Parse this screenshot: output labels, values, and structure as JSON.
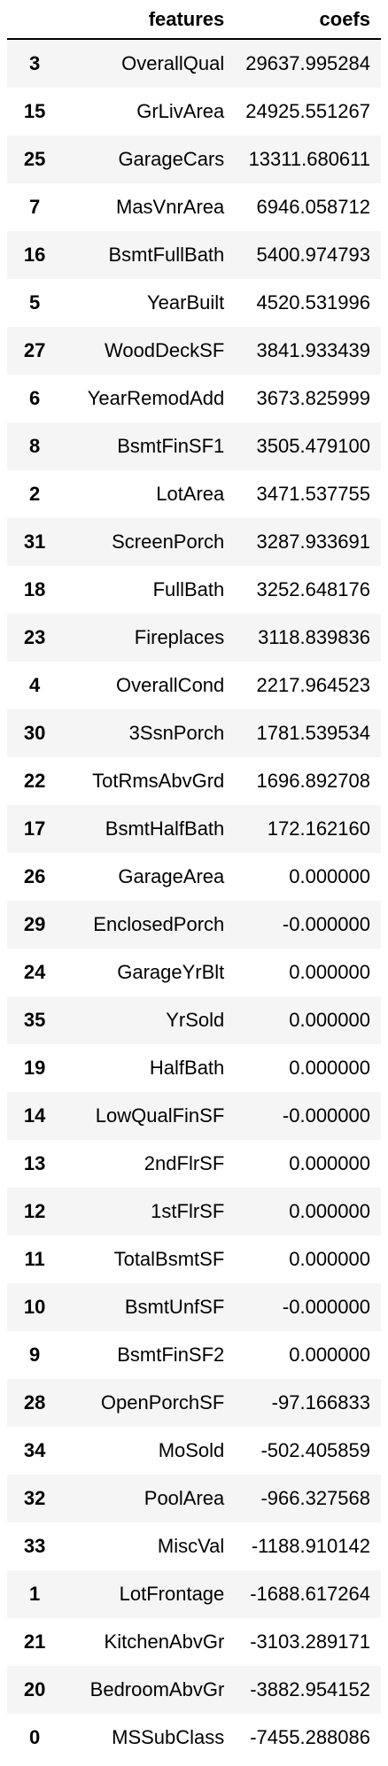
{
  "table": {
    "columns": [
      "",
      "features",
      "coefs"
    ],
    "rows": [
      {
        "index": "3",
        "feature": "OverallQual",
        "coef": "29637.995284"
      },
      {
        "index": "15",
        "feature": "GrLivArea",
        "coef": "24925.551267"
      },
      {
        "index": "25",
        "feature": "GarageCars",
        "coef": "13311.680611"
      },
      {
        "index": "7",
        "feature": "MasVnrArea",
        "coef": "6946.058712"
      },
      {
        "index": "16",
        "feature": "BsmtFullBath",
        "coef": "5400.974793"
      },
      {
        "index": "5",
        "feature": "YearBuilt",
        "coef": "4520.531996"
      },
      {
        "index": "27",
        "feature": "WoodDeckSF",
        "coef": "3841.933439"
      },
      {
        "index": "6",
        "feature": "YearRemodAdd",
        "coef": "3673.825999"
      },
      {
        "index": "8",
        "feature": "BsmtFinSF1",
        "coef": "3505.479100"
      },
      {
        "index": "2",
        "feature": "LotArea",
        "coef": "3471.537755"
      },
      {
        "index": "31",
        "feature": "ScreenPorch",
        "coef": "3287.933691"
      },
      {
        "index": "18",
        "feature": "FullBath",
        "coef": "3252.648176"
      },
      {
        "index": "23",
        "feature": "Fireplaces",
        "coef": "3118.839836"
      },
      {
        "index": "4",
        "feature": "OverallCond",
        "coef": "2217.964523"
      },
      {
        "index": "30",
        "feature": "3SsnPorch",
        "coef": "1781.539534"
      },
      {
        "index": "22",
        "feature": "TotRmsAbvGrd",
        "coef": "1696.892708"
      },
      {
        "index": "17",
        "feature": "BsmtHalfBath",
        "coef": "172.162160"
      },
      {
        "index": "26",
        "feature": "GarageArea",
        "coef": "0.000000"
      },
      {
        "index": "29",
        "feature": "EnclosedPorch",
        "coef": "-0.000000"
      },
      {
        "index": "24",
        "feature": "GarageYrBlt",
        "coef": "0.000000"
      },
      {
        "index": "35",
        "feature": "YrSold",
        "coef": "0.000000"
      },
      {
        "index": "19",
        "feature": "HalfBath",
        "coef": "0.000000"
      },
      {
        "index": "14",
        "feature": "LowQualFinSF",
        "coef": "-0.000000"
      },
      {
        "index": "13",
        "feature": "2ndFlrSF",
        "coef": "0.000000"
      },
      {
        "index": "12",
        "feature": "1stFlrSF",
        "coef": "0.000000"
      },
      {
        "index": "11",
        "feature": "TotalBsmtSF",
        "coef": "0.000000"
      },
      {
        "index": "10",
        "feature": "BsmtUnfSF",
        "coef": "-0.000000"
      },
      {
        "index": "9",
        "feature": "BsmtFinSF2",
        "coef": "0.000000"
      },
      {
        "index": "28",
        "feature": "OpenPorchSF",
        "coef": "-97.166833"
      },
      {
        "index": "34",
        "feature": "MoSold",
        "coef": "-502.405859"
      },
      {
        "index": "32",
        "feature": "PoolArea",
        "coef": "-966.327568"
      },
      {
        "index": "33",
        "feature": "MiscVal",
        "coef": "-1188.910142"
      },
      {
        "index": "1",
        "feature": "LotFrontage",
        "coef": "-1688.617264"
      },
      {
        "index": "21",
        "feature": "KitchenAbvGr",
        "coef": "-3103.289171"
      },
      {
        "index": "20",
        "feature": "BedroomAbvGr",
        "coef": "-3882.954152"
      },
      {
        "index": "0",
        "feature": "MSSubClass",
        "coef": "-7455.288086"
      }
    ]
  }
}
